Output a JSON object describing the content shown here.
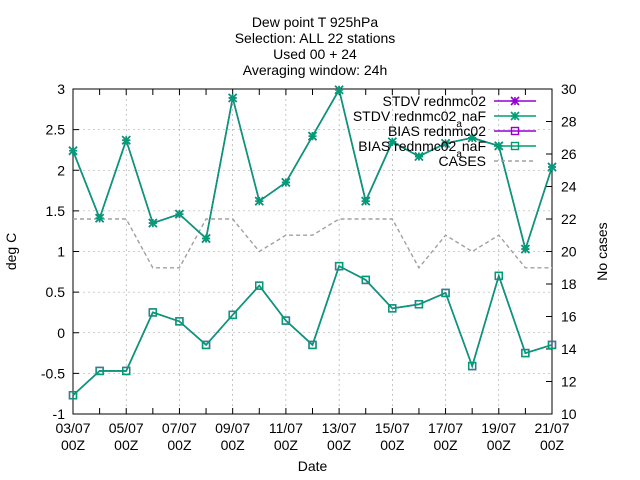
{
  "chart_data": {
    "type": "line",
    "title_lines": [
      "Dew point T 925hPa",
      "Selection: ALL      22 stations",
      "Used 00 + 24",
      "Averaging window: 24h"
    ],
    "xlabel": "Date",
    "ylabel": "deg C",
    "y2label": "No cases",
    "ylim": [
      -1,
      3
    ],
    "y2lim": [
      10,
      30
    ],
    "yticks": [
      "3",
      "2.5",
      "2",
      "1.5",
      "1",
      "0.5",
      "0",
      "-0.5",
      "-1"
    ],
    "y2ticks": [
      "30",
      "28",
      "26",
      "24",
      "22",
      "20",
      "18",
      "16",
      "14",
      "12",
      "10"
    ],
    "xtick_labels": [
      {
        "date": "03/07",
        "hour": "00Z"
      },
      {
        "date": "05/07",
        "hour": "00Z"
      },
      {
        "date": "07/07",
        "hour": "00Z"
      },
      {
        "date": "09/07",
        "hour": "00Z"
      },
      {
        "date": "11/07",
        "hour": "00Z"
      },
      {
        "date": "13/07",
        "hour": "00Z"
      },
      {
        "date": "15/07",
        "hour": "00Z"
      },
      {
        "date": "17/07",
        "hour": "00Z"
      },
      {
        "date": "19/07",
        "hour": "00Z"
      },
      {
        "date": "21/07",
        "hour": "00Z"
      }
    ],
    "x_days": [
      3,
      4,
      5,
      6,
      7,
      8,
      9,
      10,
      11,
      12,
      13,
      14,
      15,
      16,
      17,
      18,
      19,
      20,
      21
    ],
    "legend_placement": "top-right",
    "series": [
      {
        "name": "STDV rednmc02",
        "axis": "y1",
        "color": "#9400d3",
        "marker": "star",
        "values": [
          2.24,
          1.41,
          2.37,
          1.35,
          1.46,
          1.16,
          2.89,
          1.62,
          1.85,
          2.42,
          2.99,
          1.62,
          2.35,
          2.17,
          2.33,
          2.4,
          2.3,
          1.03,
          2.04
        ]
      },
      {
        "name": "STDV rednmc02_a_naF",
        "axis": "y1",
        "color": "#009e73",
        "marker": "star",
        "values": [
          2.24,
          1.41,
          2.37,
          1.35,
          1.46,
          1.16,
          2.89,
          1.62,
          1.85,
          2.42,
          2.99,
          1.62,
          2.35,
          2.17,
          2.33,
          2.4,
          2.3,
          1.03,
          2.04
        ]
      },
      {
        "name": "BIAS rednmc02",
        "axis": "y1",
        "color": "#9400d3",
        "marker": "square",
        "values": [
          -0.77,
          -0.47,
          -0.47,
          0.25,
          0.14,
          -0.15,
          0.22,
          0.58,
          0.15,
          -0.15,
          0.82,
          0.65,
          0.3,
          0.35,
          0.49,
          -0.41,
          0.7,
          -0.25,
          -0.15
        ]
      },
      {
        "name": "BIAS rednmc02_a_naF",
        "axis": "y1",
        "color": "#009e73",
        "marker": "square",
        "values": [
          -0.77,
          -0.47,
          -0.47,
          0.25,
          0.14,
          -0.15,
          0.22,
          0.58,
          0.15,
          -0.15,
          0.82,
          0.65,
          0.3,
          0.35,
          0.49,
          -0.41,
          0.7,
          -0.25,
          -0.15
        ]
      },
      {
        "name": "CASES",
        "axis": "y2",
        "color": "#a0a0a0",
        "dash": true,
        "values": [
          22,
          22,
          22,
          19,
          19,
          22,
          22,
          20,
          21,
          21,
          22,
          22,
          22,
          19,
          21,
          20,
          21,
          19,
          19
        ]
      }
    ]
  }
}
